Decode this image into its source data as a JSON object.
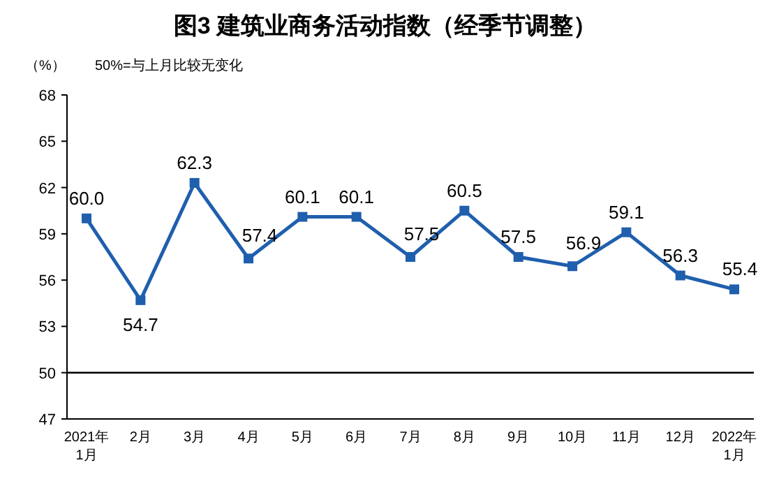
{
  "chart_data": {
    "type": "line",
    "title": "图3  建筑业商务活动指数（经季节调整）",
    "ylabel": "（%）",
    "annotations": [
      "50%=与上月比较无变化"
    ],
    "categories": [
      "2021年\n1月",
      "2月",
      "3月",
      "4月",
      "5月",
      "6月",
      "7月",
      "8月",
      "9月",
      "10月",
      "11月",
      "12月",
      "2022年\n1月"
    ],
    "series": [
      {
        "color": "#1f5fad",
        "values": [
          60.0,
          54.7,
          62.3,
          57.4,
          60.1,
          60.1,
          57.5,
          60.5,
          57.5,
          56.9,
          59.1,
          56.3,
          55.4
        ],
        "value_labels": [
          "60.0",
          "54.7",
          "62.3",
          "57.4",
          "60.1",
          "60.1",
          "57.5",
          "60.5",
          "57.5",
          "56.9",
          "59.1",
          "56.3",
          "55.4"
        ]
      }
    ],
    "ylim": [
      47,
      68
    ],
    "yticks": [
      47,
      50,
      53,
      56,
      59,
      62,
      65,
      68
    ],
    "ref_lines": [
      {
        "axis": "y",
        "value": 50,
        "color": "#000000"
      }
    ],
    "marker": "square",
    "grid": false
  }
}
